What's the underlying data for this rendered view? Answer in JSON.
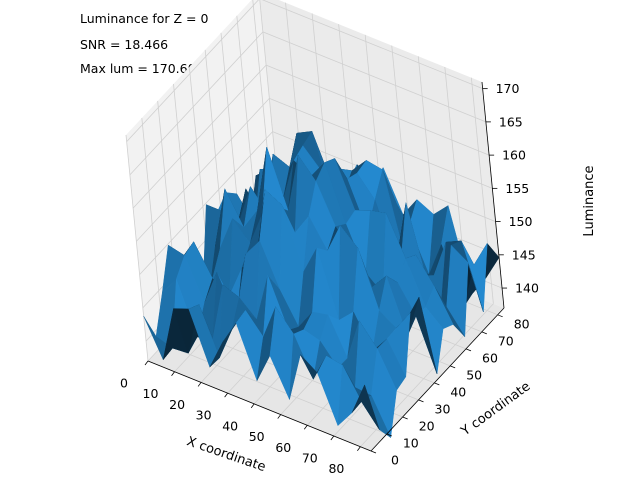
{
  "chart_data": {
    "type": "surface",
    "annotations": [
      "Luminance for Z = 0",
      "SNR = 18.466",
      "Max lum = 170.606"
    ],
    "xlabel": "X coordinate",
    "ylabel": "Y coordinate",
    "zlabel": "Luminance",
    "x_ticks": [
      0,
      10,
      20,
      30,
      40,
      50,
      60,
      70,
      80
    ],
    "y_ticks": [
      0,
      10,
      20,
      30,
      40,
      50,
      60,
      70,
      80
    ],
    "z_ticks": [
      140,
      145,
      150,
      155,
      160,
      165,
      170
    ],
    "xlim": [
      0,
      84
    ],
    "ylim": [
      0,
      84
    ],
    "zlim": [
      137,
      171
    ],
    "surface": {
      "x_start": 0,
      "y_start": 0,
      "spacing": 6,
      "count": 15,
      "peak_center": [
        42,
        42
      ],
      "peak_value": 162,
      "edge_value": 141,
      "noise_amplitude": 7,
      "max_value": 170.606,
      "grid": true,
      "color": "#1f77b4"
    },
    "pane_colors": [
      "#f2f2f2",
      "#e6e6e6",
      "#ebebeb"
    ]
  }
}
